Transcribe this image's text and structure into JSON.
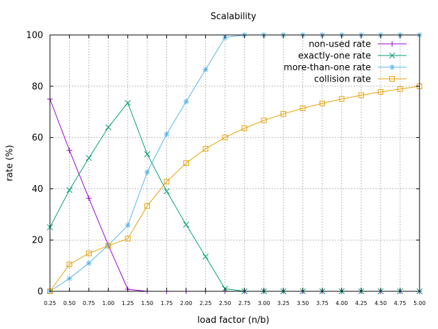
{
  "chart_data": {
    "type": "line",
    "title": "Scalability",
    "xlabel": "load factor (n/b)",
    "ylabel": "rate (%)",
    "xlim": [
      0.25,
      5.0
    ],
    "ylim": [
      0,
      100
    ],
    "grid": true,
    "legend_position": "top-right",
    "x": [
      0.25,
      0.5,
      0.75,
      1.0,
      1.25,
      1.5,
      1.75,
      2.0,
      2.25,
      2.5,
      2.75,
      3.0,
      3.25,
      3.5,
      3.75,
      4.0,
      4.25,
      4.5,
      4.75,
      5.0
    ],
    "x_tick_labels": [
      "0.25",
      "0.50",
      "0.75",
      "1.00",
      "1.25",
      "1.50",
      "1.75",
      "2.00",
      "2.25",
      "2.50",
      "2.75",
      "3.00",
      "3.25",
      "3.50",
      "3.75",
      "4.00",
      "4.25",
      "4.50",
      "4.75",
      "5.00"
    ],
    "y_ticks": [
      0,
      20,
      40,
      60,
      80,
      100
    ],
    "y_tick_labels": [
      "0",
      "20",
      "40",
      "60",
      "80",
      "100"
    ],
    "series": [
      {
        "name": "non-used rate",
        "color": "#9400d3",
        "marker": "plus",
        "values": [
          75,
          55,
          36.3,
          18,
          0.8,
          0,
          0,
          0,
          0,
          0,
          0,
          0,
          0,
          0,
          0,
          0,
          0,
          0,
          0,
          0
        ]
      },
      {
        "name": "exactly-one rate",
        "color": "#009e73",
        "marker": "cross",
        "values": [
          25,
          39.5,
          52,
          64,
          73.5,
          53.5,
          39,
          26,
          13.5,
          1,
          0,
          0,
          0,
          0,
          0,
          0,
          0,
          0,
          0,
          0
        ]
      },
      {
        "name": "more-than-one rate",
        "color": "#56b4e9",
        "marker": "star",
        "values": [
          0,
          5,
          11,
          18,
          25.7,
          46.5,
          61.3,
          74,
          86.5,
          99,
          100,
          100,
          100,
          100,
          100,
          100,
          100,
          100,
          100,
          100
        ]
      },
      {
        "name": "collision rate",
        "color": "#e69f00",
        "marker": "square",
        "values": [
          0,
          10.5,
          14.8,
          17.8,
          20.5,
          33.3,
          42.8,
          50,
          55.6,
          60,
          63.6,
          66.7,
          69.2,
          71.4,
          73.3,
          75,
          76.5,
          77.8,
          78.9,
          80
        ]
      }
    ]
  }
}
